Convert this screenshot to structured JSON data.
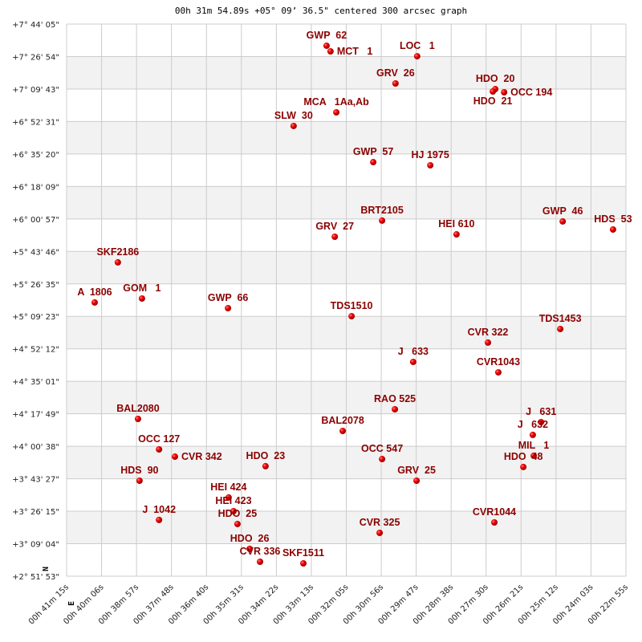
{
  "chart_data": {
    "type": "scatter",
    "title": "00h 31m 54.89s +05° 09’ 36.5\" centered 300 arcsec graph",
    "xlabel": "",
    "ylabel": "",
    "x_units": "RA minutes (00h)",
    "y_units": "Dec degrees",
    "xlim": [
      41.25,
      22.9167
    ],
    "ylim": [
      2.8647,
      7.7347
    ],
    "x_reversed": true,
    "grid": true,
    "alternating_bands": true,
    "compass": {
      "north": "N",
      "east": "E"
    },
    "x_tick_labels": [
      "00h 41m 15s",
      "00h 40m 06s",
      "00h 38m 57s",
      "00h 37m 48s",
      "00h 36m 40s",
      "00h 35m 31s",
      "00h 34m 22s",
      "00h 33m 13s",
      "00h 32m 05s",
      "00h 30m 56s",
      "00h 29m 47s",
      "00h 28m 38s",
      "00h 27m 30s",
      "00h 26m 21s",
      "00h 25m 12s",
      "00h 24m 03s",
      "00h 22m 55s"
    ],
    "y_tick_labels": [
      "+7° 44' 05\"",
      "+7° 26' 54\"",
      "+7° 09' 43\"",
      "+6° 52' 31\"",
      "+6° 35' 20\"",
      "+6° 18' 09\"",
      "+6° 00' 57\"",
      "+5° 43' 46\"",
      "+5° 26' 35\"",
      "+5° 09' 23\"",
      "+4° 52' 12\"",
      "+4° 35' 01\"",
      "+4° 17' 49\"",
      "+4° 00' 38\"",
      "+3° 43' 27\"",
      "+3° 26' 15\"",
      "+3° 09' 04\"",
      "+2° 51' 53\""
    ],
    "colors": {
      "point": "#dd0000",
      "label": "#8b0000",
      "band": "#f2f2f2",
      "grid": "#cccccc"
    },
    "points": [
      {
        "name": "GWP  62",
        "x": 32.73,
        "y": 7.544
      },
      {
        "name": "MCT   1",
        "x": 32.6,
        "y": 7.494
      },
      {
        "name": "LOC   1",
        "x": 29.76,
        "y": 7.451
      },
      {
        "name": "GRV  26",
        "x": 30.47,
        "y": 7.211
      },
      {
        "name": "HDO  20",
        "x": 27.2,
        "y": 7.161
      },
      {
        "name": "HDO  21",
        "x": 27.28,
        "y": 7.14
      },
      {
        "name": "OCC 194",
        "x": 26.91,
        "y": 7.133
      },
      {
        "name": "MCA   1Aa,Ab",
        "x": 32.41,
        "y": 6.956
      },
      {
        "name": "SLW  30",
        "x": 33.81,
        "y": 6.836
      },
      {
        "name": "GWP  57",
        "x": 31.2,
        "y": 6.517
      },
      {
        "name": "HJ 1975",
        "x": 29.33,
        "y": 6.489
      },
      {
        "name": "BRT2105",
        "x": 30.91,
        "y": 6.001
      },
      {
        "name": "GRV  27",
        "x": 32.46,
        "y": 5.859
      },
      {
        "name": "HEI 610",
        "x": 28.47,
        "y": 5.88
      },
      {
        "name": "GWP  46",
        "x": 24.99,
        "y": 5.994
      },
      {
        "name": "HDS  53",
        "x": 23.34,
        "y": 5.923
      },
      {
        "name": "SKF2186",
        "x": 39.57,
        "y": 5.633
      },
      {
        "name": "A  1806",
        "x": 40.33,
        "y": 5.279
      },
      {
        "name": "GOM   1",
        "x": 38.78,
        "y": 5.314
      },
      {
        "name": "GWP  66",
        "x": 35.96,
        "y": 5.229
      },
      {
        "name": "TDS1510",
        "x": 31.91,
        "y": 5.158
      },
      {
        "name": "TDS1453",
        "x": 25.07,
        "y": 5.045
      },
      {
        "name": "CVR 322",
        "x": 27.44,
        "y": 4.925
      },
      {
        "name": "J   633",
        "x": 29.89,
        "y": 4.755
      },
      {
        "name": "CVR1043",
        "x": 27.1,
        "y": 4.663
      },
      {
        "name": "RAO 525",
        "x": 30.49,
        "y": 4.337
      },
      {
        "name": "J   631",
        "x": 25.7,
        "y": 4.224
      },
      {
        "name": "J   632",
        "x": 25.97,
        "y": 4.111
      },
      {
        "name": "MIL   1",
        "x": 25.94,
        "y": 3.927
      },
      {
        "name": "HDO  48",
        "x": 26.28,
        "y": 3.828
      },
      {
        "name": "BAL2080",
        "x": 38.91,
        "y": 4.252
      },
      {
        "name": "BAL2078",
        "x": 32.2,
        "y": 4.146
      },
      {
        "name": "OCC 127",
        "x": 38.22,
        "y": 3.983
      },
      {
        "name": "CVR 342",
        "x": 37.7,
        "y": 3.919
      },
      {
        "name": "OCC 547",
        "x": 30.91,
        "y": 3.898
      },
      {
        "name": "HDO  23",
        "x": 34.73,
        "y": 3.835
      },
      {
        "name": "HDS  90",
        "x": 38.86,
        "y": 3.707
      },
      {
        "name": "GRV  25",
        "x": 29.78,
        "y": 3.707
      },
      {
        "name": "HEI 424",
        "x": 35.94,
        "y": 3.559
      },
      {
        "name": "HEI 423",
        "x": 35.78,
        "y": 3.438
      },
      {
        "name": "HDO  25",
        "x": 35.65,
        "y": 3.325
      },
      {
        "name": "J  1042",
        "x": 38.22,
        "y": 3.361
      },
      {
        "name": "CVR 325",
        "x": 30.99,
        "y": 3.247
      },
      {
        "name": "CVR1044",
        "x": 27.23,
        "y": 3.339
      },
      {
        "name": "HDO  26",
        "x": 35.25,
        "y": 3.106
      },
      {
        "name": "CVR 336",
        "x": 34.91,
        "y": 2.992
      },
      {
        "name": "SKF1511",
        "x": 33.49,
        "y": 2.978
      }
    ]
  }
}
